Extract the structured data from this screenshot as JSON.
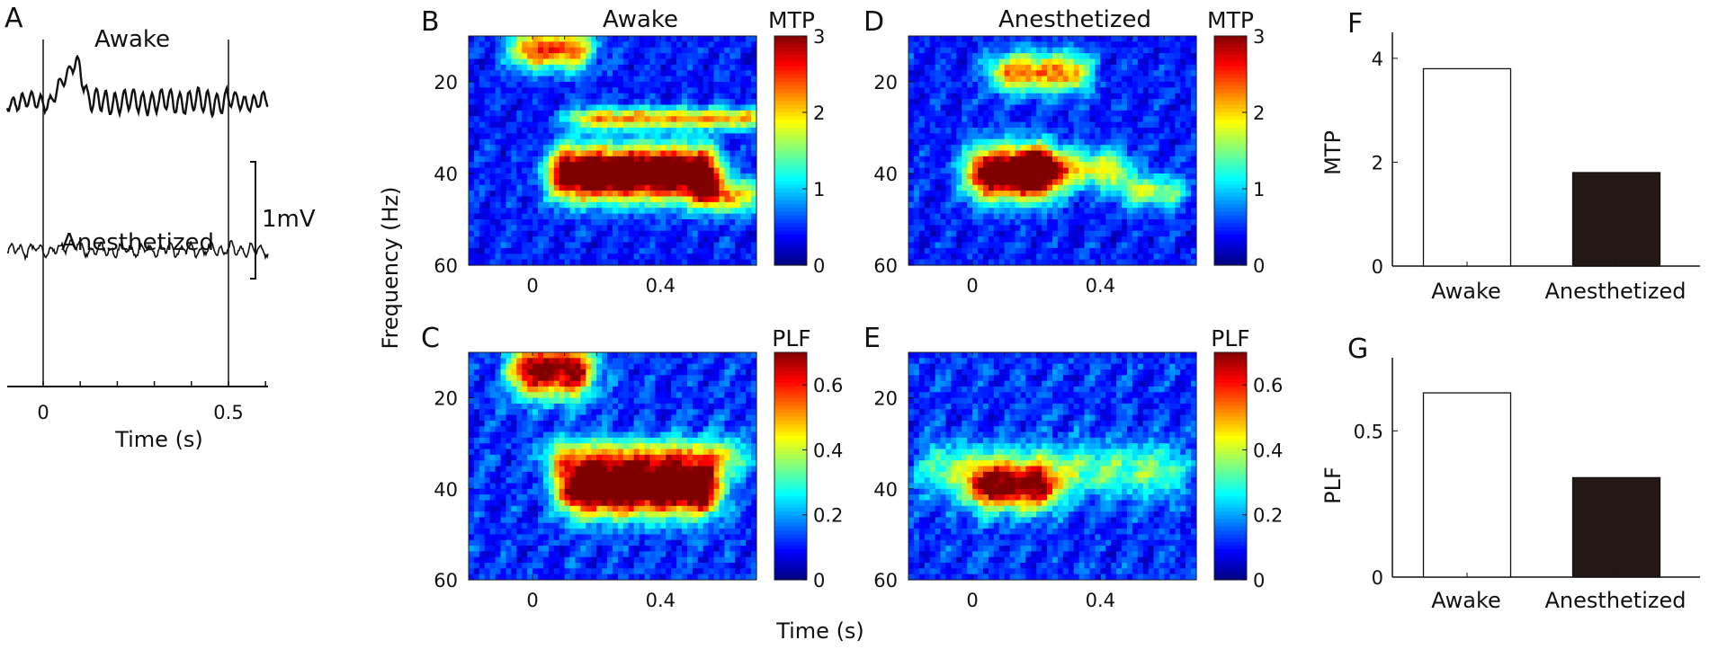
{
  "figure": {
    "panel_labels": [
      "A",
      "B",
      "C",
      "D",
      "E",
      "F",
      "G"
    ],
    "shared_y_label": "Frequency (Hz)",
    "shared_x_label": "Time (s)"
  },
  "chart_data": [
    {
      "panel": "A",
      "type": "line",
      "traces": [
        {
          "name": "Awake",
          "style": "high-amplitude gamma oscillation with evoked response near t=0.05 s"
        },
        {
          "name": "Anesthetized",
          "style": "low-amplitude irregular oscillation"
        }
      ],
      "xlabel": "Time (s)",
      "xticks": [
        0,
        0.5
      ],
      "xtick_labels": [
        "0",
        "0.5"
      ],
      "xlim": [
        -0.1,
        0.6
      ],
      "event_lines": [
        0,
        0.5
      ],
      "scale_bar": "1mV"
    },
    {
      "panel": "B",
      "type": "heatmap",
      "title": "Awake",
      "colorbar_label": "MTP",
      "colorbar_ticks": [
        0,
        1,
        2,
        3
      ],
      "clim": [
        0,
        3
      ],
      "xlim": [
        -0.2,
        0.7
      ],
      "ylim": [
        10,
        60
      ],
      "xticks": [
        0,
        0.4
      ],
      "yticks": [
        20,
        40,
        60
      ],
      "ylabel": "Frequency (Hz)",
      "blobs": [
        {
          "t0": 0.12,
          "t1": 0.52,
          "f": 40,
          "fw": 4,
          "peak": 3.4
        },
        {
          "t0": 0.18,
          "t1": 0.66,
          "f": 28,
          "fw": 1.6,
          "peak": 1.7
        },
        {
          "t0": 0.0,
          "t1": 0.12,
          "f": 13,
          "fw": 3,
          "peak": 2.0
        },
        {
          "t0": 0.58,
          "t1": 0.66,
          "f": 45,
          "fw": 2.5,
          "peak": 1.5
        }
      ]
    },
    {
      "panel": "C",
      "type": "heatmap",
      "colorbar_label": "PLF",
      "colorbar_ticks": [
        0,
        0.2,
        0.4,
        0.6
      ],
      "clim": [
        0,
        0.7
      ],
      "xlim": [
        -0.2,
        0.7
      ],
      "ylim": [
        10,
        60
      ],
      "xticks": [
        0,
        0.4
      ],
      "yticks": [
        20,
        40,
        60
      ],
      "blobs": [
        {
          "t0": 0.15,
          "t1": 0.52,
          "f": 40,
          "fw": 4,
          "peak": 0.75
        },
        {
          "t0": 0.0,
          "t1": 0.12,
          "f": 14,
          "fw": 4,
          "peak": 0.62
        },
        {
          "t0": 0.1,
          "t1": 0.6,
          "f": 33,
          "fw": 3,
          "peak": 0.3
        }
      ]
    },
    {
      "panel": "D",
      "type": "heatmap",
      "title": "Anesthetized",
      "colorbar_label": "MTP",
      "colorbar_ticks": [
        0,
        1,
        2,
        3
      ],
      "clim": [
        0,
        3
      ],
      "xlim": [
        -0.2,
        0.7
      ],
      "ylim": [
        10,
        60
      ],
      "xticks": [
        0,
        0.4
      ],
      "yticks": [
        20,
        40,
        60
      ],
      "blobs": [
        {
          "t0": 0.05,
          "t1": 0.2,
          "f": 40,
          "fw": 4,
          "peak": 3.0
        },
        {
          "t0": 0.2,
          "t1": 0.42,
          "f": 39,
          "fw": 3,
          "peak": 1.4
        },
        {
          "t0": 0.12,
          "t1": 0.3,
          "f": 18,
          "fw": 3,
          "peak": 1.8
        },
        {
          "t0": 0.52,
          "t1": 0.6,
          "f": 44,
          "fw": 2.5,
          "peak": 1.2
        }
      ]
    },
    {
      "panel": "E",
      "type": "heatmap",
      "colorbar_label": "PLF",
      "colorbar_ticks": [
        0,
        0.2,
        0.4,
        0.6
      ],
      "clim": [
        0,
        0.7
      ],
      "xlim": [
        -0.2,
        0.7
      ],
      "ylim": [
        10,
        60
      ],
      "xticks": [
        0,
        0.4
      ],
      "yticks": [
        20,
        40,
        60
      ],
      "blobs": [
        {
          "t0": 0.05,
          "t1": 0.2,
          "f": 40,
          "fw": 3.5,
          "peak": 0.48
        },
        {
          "t0": -0.1,
          "t1": 0.6,
          "f": 36,
          "fw": 4,
          "peak": 0.22
        }
      ]
    },
    {
      "panel": "F",
      "type": "bar",
      "categories": [
        "Awake",
        "Anesthetized"
      ],
      "values": [
        3.8,
        1.8
      ],
      "fills": [
        "#ffffff",
        "#231815"
      ],
      "ylabel": "MTP",
      "ylim": [
        0,
        4.5
      ],
      "yticks": [
        0,
        2,
        4
      ]
    },
    {
      "panel": "G",
      "type": "bar",
      "categories": [
        "Awake",
        "Anesthetized"
      ],
      "values": [
        0.63,
        0.34
      ],
      "fills": [
        "#ffffff",
        "#231815"
      ],
      "ylabel": "PLF",
      "ylim": [
        0,
        0.75
      ],
      "yticks": [
        0,
        0.5
      ],
      "ytick_labels": [
        "0",
        "0.5"
      ]
    }
  ]
}
